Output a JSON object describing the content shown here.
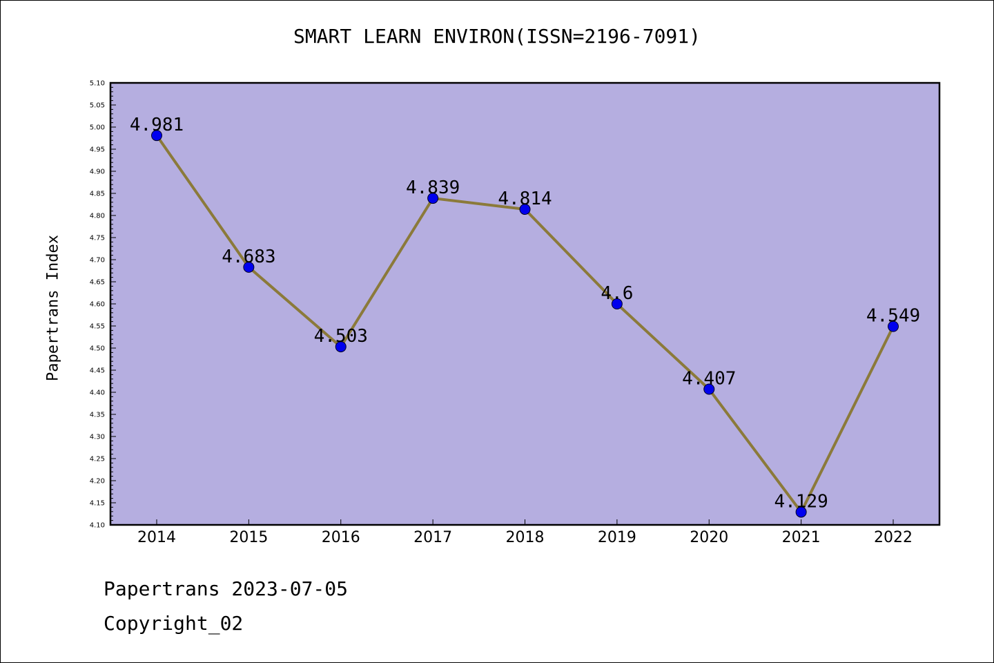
{
  "chart_data": {
    "type": "line",
    "title": "SMART LEARN ENVIRON(ISSN=2196-7091)",
    "xlabel": "",
    "ylabel": "Papertrans Index",
    "categories": [
      "2014",
      "2015",
      "2016",
      "2017",
      "2018",
      "2019",
      "2020",
      "2021",
      "2022"
    ],
    "values": [
      4.981,
      4.683,
      4.503,
      4.839,
      4.814,
      4.6,
      4.407,
      4.129,
      4.549
    ],
    "data_labels": [
      "4.981",
      "4.683",
      "4.503",
      "4.839",
      "4.814",
      "4.6",
      "4.407",
      "4.129",
      "4.549"
    ],
    "ylim": [
      4.1,
      5.1
    ],
    "yticks": [
      "4.10",
      "4.15",
      "4.20",
      "4.25",
      "4.30",
      "4.35",
      "4.40",
      "4.45",
      "4.50",
      "4.55",
      "4.60",
      "4.65",
      "4.70",
      "4.75",
      "4.80",
      "4.85",
      "4.90",
      "4.95",
      "5.00",
      "5.05",
      "5.10"
    ],
    "grid": false,
    "colors": {
      "plot_background": "#b5aee0",
      "line": "#8b7a3a",
      "marker": "#0000ee"
    }
  },
  "footer": {
    "line1": "Papertrans 2023-07-05",
    "line2": "Copyright_02"
  }
}
